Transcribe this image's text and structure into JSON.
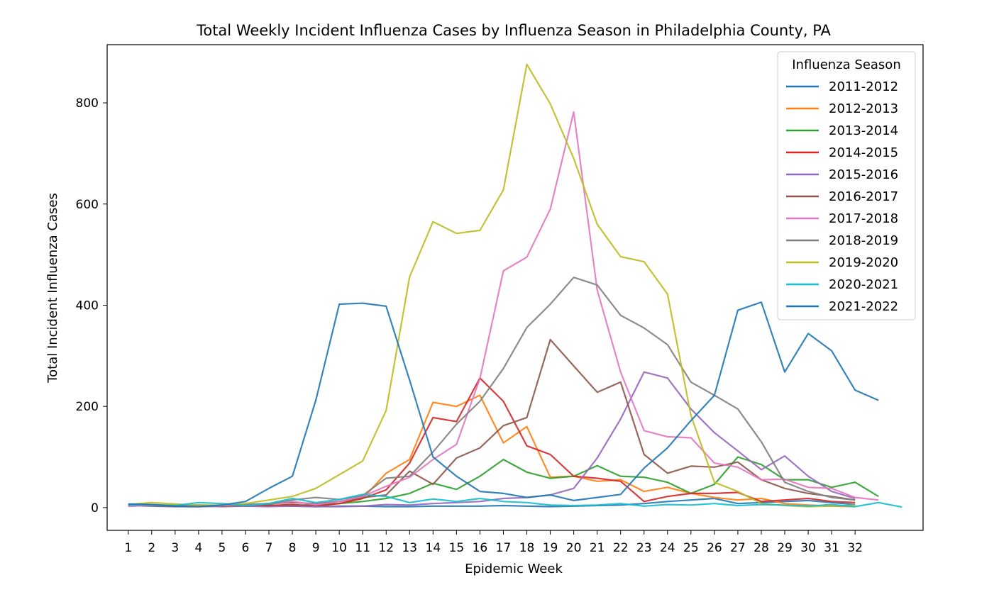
{
  "chart_data": {
    "type": "line",
    "title": "Total Weekly Incident Influenza Cases by Influenza Season in Philadelphia County, PA",
    "xlabel": "Epidemic Week",
    "ylabel": "Total Incident Influenza Cases",
    "x_ticks": [
      1,
      2,
      3,
      4,
      5,
      6,
      7,
      8,
      9,
      10,
      11,
      12,
      13,
      14,
      15,
      16,
      17,
      18,
      19,
      20,
      21,
      22,
      23,
      24,
      25,
      26,
      27,
      28,
      29,
      30,
      31,
      32
    ],
    "y_ticks": [
      0,
      200,
      400,
      600,
      800
    ],
    "xlim": [
      0.1,
      34.9
    ],
    "ylim": [
      -45,
      915
    ],
    "grid": false,
    "legend": {
      "title": "Influenza Season",
      "placement": "top-right"
    },
    "series": [
      {
        "name": "2011-2012",
        "color": "#1f77b4",
        "values": [
          4,
          3,
          2,
          2,
          3,
          4,
          5,
          3,
          2,
          3,
          3,
          2,
          2,
          3,
          3,
          3,
          4,
          3,
          2,
          3,
          4,
          5,
          8,
          12,
          15,
          18,
          8,
          10,
          12,
          14,
          10,
          6
        ]
      },
      {
        "name": "2012-2013",
        "color": "#ff7f0e",
        "values": [
          3,
          6,
          4,
          3,
          5,
          4,
          3,
          5,
          4,
          8,
          18,
          68,
          95,
          208,
          200,
          222,
          128,
          160,
          60,
          62,
          52,
          55,
          32,
          40,
          28,
          20,
          15,
          18,
          8,
          5,
          3,
          2
        ]
      },
      {
        "name": "2013-2014",
        "color": "#2ca02c",
        "values": [
          5,
          4,
          3,
          5,
          4,
          3,
          5,
          4,
          6,
          8,
          12,
          18,
          28,
          48,
          36,
          62,
          95,
          70,
          58,
          62,
          83,
          62,
          60,
          50,
          28,
          46,
          100,
          85,
          55,
          55,
          40,
          50,
          22
        ]
      },
      {
        "name": "2014-2015",
        "color": "#d62728",
        "values": [
          4,
          5,
          3,
          2,
          4,
          3,
          4,
          6,
          3,
          8,
          18,
          35,
          88,
          178,
          170,
          256,
          210,
          122,
          105,
          62,
          58,
          52,
          12,
          22,
          28,
          28,
          30,
          12,
          15,
          18,
          12,
          10
        ]
      },
      {
        "name": "2015-2016",
        "color": "#9467bd",
        "values": [
          3,
          4,
          2,
          3,
          2,
          3,
          2,
          3,
          2,
          2,
          3,
          6,
          5,
          8,
          10,
          12,
          18,
          20,
          25,
          38,
          98,
          175,
          268,
          256,
          195,
          148,
          112,
          75,
          102,
          62,
          32,
          18
        ]
      },
      {
        "name": "2016-2017",
        "color": "#8c564b",
        "values": [
          5,
          4,
          3,
          4,
          3,
          5,
          8,
          10,
          8,
          12,
          20,
          25,
          72,
          46,
          98,
          118,
          162,
          178,
          332,
          280,
          228,
          248,
          105,
          68,
          82,
          80,
          90,
          55,
          38,
          28,
          22,
          15
        ]
      },
      {
        "name": "2017-2018",
        "color": "#e377c2",
        "values": [
          3,
          4,
          5,
          3,
          4,
          6,
          8,
          12,
          6,
          12,
          22,
          42,
          60,
          95,
          125,
          255,
          468,
          495,
          590,
          782,
          430,
          268,
          152,
          140,
          138,
          88,
          80,
          55,
          56,
          40,
          38,
          20,
          15
        ]
      },
      {
        "name": "2018-2019",
        "color": "#7f7f7f",
        "values": [
          6,
          5,
          4,
          3,
          5,
          6,
          8,
          15,
          20,
          16,
          24,
          58,
          62,
          110,
          165,
          210,
          275,
          356,
          402,
          455,
          440,
          380,
          355,
          322,
          248,
          222,
          195,
          130,
          50,
          32,
          20,
          15
        ]
      },
      {
        "name": "2019-2020",
        "color": "#bcbd22",
        "values": [
          6,
          10,
          7,
          5,
          5,
          8,
          15,
          22,
          38,
          65,
          92,
          192,
          456,
          565,
          542,
          548,
          628,
          876,
          798,
          690,
          560,
          496,
          486,
          422,
          182,
          50,
          32,
          8,
          4,
          2,
          3,
          5
        ]
      },
      {
        "name": "2020-2021",
        "color": "#17becf",
        "values": [
          5,
          6,
          4,
          10,
          8,
          4,
          8,
          18,
          10,
          16,
          26,
          22,
          10,
          17,
          12,
          18,
          12,
          10,
          5,
          4,
          5,
          8,
          3,
          6,
          5,
          8,
          4,
          6,
          5,
          3,
          6,
          2,
          10,
          1
        ]
      },
      {
        "name": "2021-2022",
        "color": "#1f77b4",
        "values": [
          7,
          6,
          3,
          2,
          5,
          12,
          38,
          62,
          212,
          402,
          404,
          398,
          252,
          100,
          62,
          32,
          28,
          20,
          25,
          14,
          20,
          26,
          78,
          118,
          172,
          222,
          390,
          406,
          268,
          344,
          310,
          232,
          212
        ]
      }
    ]
  }
}
